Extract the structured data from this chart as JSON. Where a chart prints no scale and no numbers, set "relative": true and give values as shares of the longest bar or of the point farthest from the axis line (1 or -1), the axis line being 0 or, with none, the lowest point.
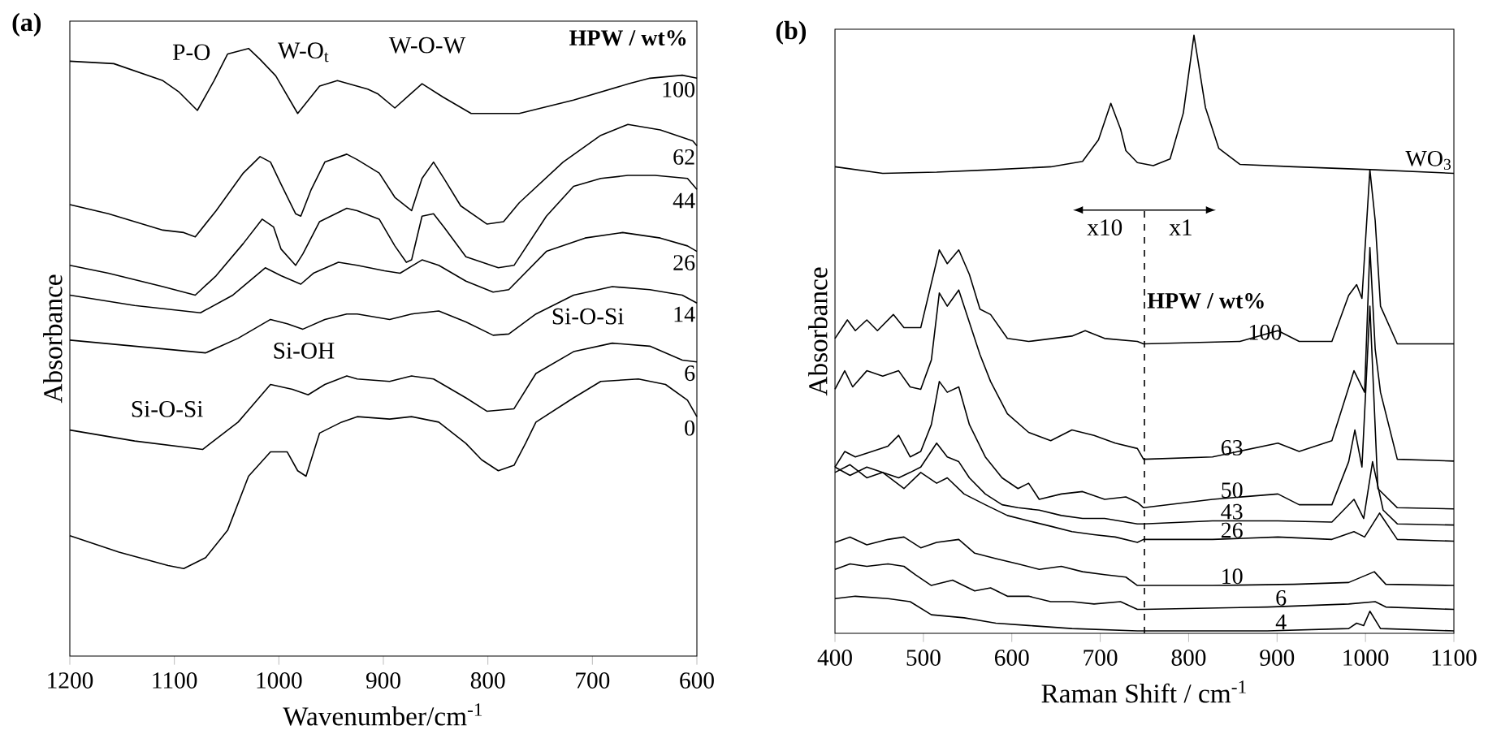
{
  "chart_data": [
    {
      "type": "line",
      "title": "(a)",
      "xlabel": "Wavenumber/cm$^{-1}$",
      "ylabel": "Absorbance",
      "legend_title": "HPW / wt%",
      "relative": true,
      "xlim": [
        1200,
        600
      ],
      "xticks": [
        1200,
        1100,
        1000,
        900,
        800,
        700,
        600
      ],
      "annotations": [
        "P-O",
        "W-O$_{t}$",
        "W-O-W",
        "Si-OH",
        "Si-O-Si",
        "Si-O-Si"
      ],
      "series": [
        {
          "name": "100",
          "color": "#000000",
          "x": [
            1200,
            1158,
            1111,
            1096,
            1078,
            1062,
            1049,
            1029,
            1018,
            1003,
            982,
            961,
            944,
            915,
            905,
            889,
            863,
            843,
            816,
            770,
            718,
            665,
            645,
            614,
            600
          ],
          "values": [
            0.979,
            0.975,
            0.947,
            0.929,
            0.898,
            0.947,
            0.991,
            1.0,
            0.982,
            0.955,
            0.893,
            0.938,
            0.947,
            0.933,
            0.925,
            0.902,
            0.942,
            0.92,
            0.893,
            0.893,
            0.915,
            0.942,
            0.951,
            0.956,
            0.951
          ]
        },
        {
          "name": "62",
          "color": "#000000",
          "x": [
            1200,
            1163,
            1111,
            1091,
            1080,
            1060,
            1034,
            1018,
            1008,
            998,
            984,
            979,
            969,
            956,
            935,
            925,
            904,
            889,
            873,
            863,
            852,
            842,
            826,
            801,
            785,
            770,
            728,
            692,
            666,
            635,
            604,
            600
          ],
          "values": [
            0.743,
            0.728,
            0.701,
            0.697,
            0.69,
            0.733,
            0.795,
            0.822,
            0.813,
            0.777,
            0.728,
            0.724,
            0.768,
            0.813,
            0.826,
            0.817,
            0.795,
            0.755,
            0.733,
            0.786,
            0.813,
            0.786,
            0.741,
            0.711,
            0.715,
            0.746,
            0.813,
            0.857,
            0.875,
            0.866,
            0.848,
            0.84
          ]
        },
        {
          "name": "44",
          "color": "#000000",
          "x": [
            1200,
            1163,
            1111,
            1080,
            1060,
            1034,
            1016,
            1005,
            998,
            984,
            977,
            961,
            935,
            925,
            904,
            889,
            878,
            873,
            863,
            852,
            842,
            821,
            790,
            775,
            744,
            718,
            692,
            666,
            640,
            609,
            600
          ],
          "values": [
            0.643,
            0.63,
            0.608,
            0.594,
            0.626,
            0.679,
            0.719,
            0.706,
            0.67,
            0.643,
            0.662,
            0.715,
            0.737,
            0.733,
            0.719,
            0.675,
            0.648,
            0.652,
            0.724,
            0.728,
            0.706,
            0.657,
            0.639,
            0.643,
            0.724,
            0.773,
            0.786,
            0.791,
            0.791,
            0.786,
            0.768
          ]
        },
        {
          "name": "26",
          "color": "#000000",
          "x": [
            1200,
            1138,
            1075,
            1044,
            1013,
            998,
            979,
            967,
            943,
            925,
            899,
            884,
            863,
            847,
            821,
            795,
            780,
            744,
            707,
            671,
            635,
            609,
            600
          ],
          "values": [
            0.594,
            0.577,
            0.565,
            0.594,
            0.639,
            0.626,
            0.612,
            0.63,
            0.648,
            0.643,
            0.634,
            0.63,
            0.652,
            0.643,
            0.617,
            0.599,
            0.603,
            0.666,
            0.688,
            0.697,
            0.688,
            0.675,
            0.666
          ]
        },
        {
          "name": "14",
          "color": "#000000",
          "x": [
            1200,
            1138,
            1070,
            1039,
            1008,
            992,
            977,
            956,
            935,
            925,
            894,
            873,
            847,
            821,
            795,
            780,
            754,
            718,
            681,
            645,
            614,
            600
          ],
          "values": [
            0.52,
            0.51,
            0.499,
            0.523,
            0.554,
            0.547,
            0.538,
            0.554,
            0.563,
            0.563,
            0.554,
            0.563,
            0.568,
            0.55,
            0.528,
            0.53,
            0.563,
            0.594,
            0.608,
            0.603,
            0.594,
            0.581
          ]
        },
        {
          "name": "6",
          "color": "#000000",
          "x": [
            1200,
            1138,
            1073,
            1039,
            1008,
            987,
            972,
            956,
            935,
            925,
            894,
            873,
            852,
            821,
            801,
            775,
            754,
            718,
            681,
            645,
            614,
            600
          ],
          "values": [
            0.372,
            0.354,
            0.34,
            0.385,
            0.447,
            0.439,
            0.43,
            0.447,
            0.461,
            0.456,
            0.452,
            0.461,
            0.456,
            0.425,
            0.403,
            0.407,
            0.465,
            0.501,
            0.515,
            0.51,
            0.487,
            0.484
          ]
        },
        {
          "name": "0",
          "color": "#000000",
          "x": [
            1200,
            1153,
            1106,
            1091,
            1070,
            1049,
            1029,
            1008,
            992,
            982,
            974,
            961,
            940,
            925,
            894,
            873,
            847,
            821,
            806,
            790,
            775,
            764,
            754,
            718,
            692,
            656,
            630,
            609,
            600
          ],
          "values": [
            0.198,
            0.171,
            0.149,
            0.144,
            0.162,
            0.207,
            0.296,
            0.336,
            0.336,
            0.305,
            0.296,
            0.367,
            0.385,
            0.394,
            0.39,
            0.394,
            0.385,
            0.35,
            0.323,
            0.305,
            0.314,
            0.35,
            0.385,
            0.425,
            0.452,
            0.456,
            0.447,
            0.421,
            0.394
          ]
        }
      ]
    },
    {
      "type": "line",
      "title": "(b)",
      "xlabel": "Raman Shift / cm$^{-1}$",
      "ylabel": "Absorbance",
      "legend_title": "HPW / wt%",
      "relative": true,
      "xlim": [
        400,
        1100
      ],
      "xticks": [
        400,
        500,
        600,
        700,
        800,
        900,
        1000,
        1100
      ],
      "ref_lines": [
        {
          "axis": "x",
          "value": 750,
          "line_style": "dashed"
        }
      ],
      "annotations": [
        "x10",
        "x1"
      ],
      "series": [
        {
          "name": "WO$_{3}$",
          "color": "#000000",
          "x": [
            400,
            454,
            515,
            576,
            644,
            680,
            698,
            712,
            723,
            729,
            742,
            760,
            779,
            794,
            806,
            819,
            834,
            858,
            919,
            1011,
            1100
          ],
          "values": [
            0.78,
            0.769,
            0.771,
            0.775,
            0.78,
            0.789,
            0.825,
            0.886,
            0.843,
            0.807,
            0.787,
            0.782,
            0.793,
            0.87,
            1.0,
            0.879,
            0.811,
            0.784,
            0.78,
            0.775,
            0.769
          ]
        },
        {
          "name": "100",
          "color": "#000000",
          "x": [
            400,
            414,
            423,
            436,
            448,
            466,
            478,
            497,
            518,
            527,
            540,
            552,
            564,
            576,
            595,
            619,
            668,
            683,
            705,
            742,
            749,
            858,
            901,
            925,
            962,
            981,
            990,
            996,
            1005,
            1011,
            1017,
            1036,
            1100
          ],
          "values": [
            0.493,
            0.524,
            0.506,
            0.524,
            0.506,
            0.533,
            0.511,
            0.511,
            0.641,
            0.618,
            0.641,
            0.6,
            0.542,
            0.533,
            0.493,
            0.488,
            0.497,
            0.506,
            0.493,
            0.488,
            0.484,
            0.488,
            0.506,
            0.488,
            0.488,
            0.565,
            0.583,
            0.56,
            0.775,
            0.69,
            0.547,
            0.484,
            0.484
          ]
        },
        {
          "name": "63",
          "color": "#000000",
          "x": [
            400,
            411,
            420,
            436,
            454,
            472,
            485,
            497,
            509,
            518,
            527,
            540,
            552,
            564,
            576,
            595,
            619,
            644,
            668,
            693,
            717,
            742,
            749,
            827,
            901,
            925,
            962,
            987,
            999,
            1005,
            1011,
            1017,
            1036,
            1100
          ],
          "values": [
            0.408,
            0.439,
            0.412,
            0.439,
            0.43,
            0.439,
            0.412,
            0.408,
            0.457,
            0.569,
            0.547,
            0.574,
            0.52,
            0.466,
            0.421,
            0.367,
            0.336,
            0.322,
            0.34,
            0.331,
            0.318,
            0.309,
            0.291,
            0.295,
            0.318,
            0.304,
            0.322,
            0.439,
            0.403,
            0.645,
            0.475,
            0.403,
            0.291,
            0.288
          ]
        },
        {
          "name": "50",
          "color": "#000000",
          "x": [
            400,
            411,
            423,
            442,
            460,
            472,
            485,
            497,
            509,
            518,
            527,
            540,
            552,
            570,
            589,
            607,
            619,
            631,
            656,
            680,
            705,
            729,
            742,
            749,
            827,
            901,
            925,
            962,
            981,
            988,
            996,
            1005,
            1014,
            1036,
            1100
          ],
          "values": [
            0.278,
            0.304,
            0.295,
            0.304,
            0.313,
            0.331,
            0.295,
            0.304,
            0.349,
            0.421,
            0.403,
            0.412,
            0.349,
            0.295,
            0.26,
            0.242,
            0.251,
            0.224,
            0.233,
            0.237,
            0.224,
            0.228,
            0.219,
            0.21,
            0.224,
            0.233,
            0.215,
            0.215,
            0.287,
            0.34,
            0.278,
            0.547,
            0.242,
            0.21,
            0.208
          ]
        },
        {
          "name": "43",
          "color": "#000000",
          "x": [
            400,
            417,
            436,
            454,
            472,
            485,
            497,
            515,
            527,
            540,
            552,
            570,
            589,
            607,
            631,
            656,
            680,
            705,
            742,
            749,
            827,
            901,
            962,
            987,
            998,
            1008,
            1020,
            1036,
            1100
          ],
          "values": [
            0.278,
            0.264,
            0.278,
            0.269,
            0.26,
            0.269,
            0.278,
            0.318,
            0.295,
            0.287,
            0.26,
            0.233,
            0.215,
            0.21,
            0.206,
            0.197,
            0.192,
            0.192,
            0.183,
            0.183,
            0.188,
            0.188,
            0.186,
            0.224,
            0.192,
            0.287,
            0.206,
            0.183,
            0.181
          ]
        },
        {
          "name": "26",
          "color": "#000000",
          "x": [
            400,
            417,
            436,
            454,
            478,
            497,
            515,
            527,
            546,
            570,
            595,
            619,
            644,
            668,
            693,
            717,
            742,
            749,
            827,
            901,
            962,
            987,
            999,
            1016,
            1036,
            1100
          ],
          "values": [
            0.269,
            0.282,
            0.26,
            0.269,
            0.242,
            0.269,
            0.251,
            0.26,
            0.233,
            0.215,
            0.197,
            0.188,
            0.179,
            0.17,
            0.165,
            0.161,
            0.152,
            0.157,
            0.157,
            0.161,
            0.157,
            0.17,
            0.161,
            0.201,
            0.157,
            0.154
          ]
        },
        {
          "name": "10",
          "color": "#000000",
          "x": [
            400,
            417,
            436,
            460,
            478,
            497,
            515,
            540,
            558,
            582,
            607,
            631,
            656,
            680,
            705,
            729,
            742,
            749,
            827,
            919,
            981,
            1010,
            1023,
            1100
          ],
          "values": [
            0.152,
            0.161,
            0.148,
            0.157,
            0.161,
            0.143,
            0.152,
            0.157,
            0.134,
            0.125,
            0.116,
            0.107,
            0.112,
            0.103,
            0.098,
            0.094,
            0.08,
            0.08,
            0.08,
            0.082,
            0.085,
            0.103,
            0.082,
            0.08
          ]
        },
        {
          "name": "6",
          "color": "#000000",
          "x": [
            400,
            417,
            436,
            460,
            478,
            491,
            509,
            533,
            558,
            576,
            595,
            619,
            644,
            668,
            693,
            723,
            742,
            749,
            889,
            981,
            1011,
            1023,
            1100
          ],
          "values": [
            0.107,
            0.116,
            0.112,
            0.116,
            0.112,
            0.098,
            0.08,
            0.089,
            0.071,
            0.076,
            0.062,
            0.062,
            0.053,
            0.053,
            0.049,
            0.053,
            0.04,
            0.04,
            0.044,
            0.049,
            0.053,
            0.044,
            0.04
          ]
        },
        {
          "name": "4",
          "color": "#000000",
          "x": [
            400,
            423,
            460,
            485,
            509,
            546,
            582,
            619,
            668,
            742,
            749,
            889,
            981,
            990,
            998,
            1005,
            1017,
            1100
          ],
          "values": [
            0.058,
            0.062,
            0.058,
            0.053,
            0.031,
            0.026,
            0.017,
            0.013,
            0.008,
            0.004,
            0.004,
            0.004,
            0.008,
            0.017,
            0.013,
            0.037,
            0.008,
            0.004
          ]
        }
      ]
    }
  ]
}
